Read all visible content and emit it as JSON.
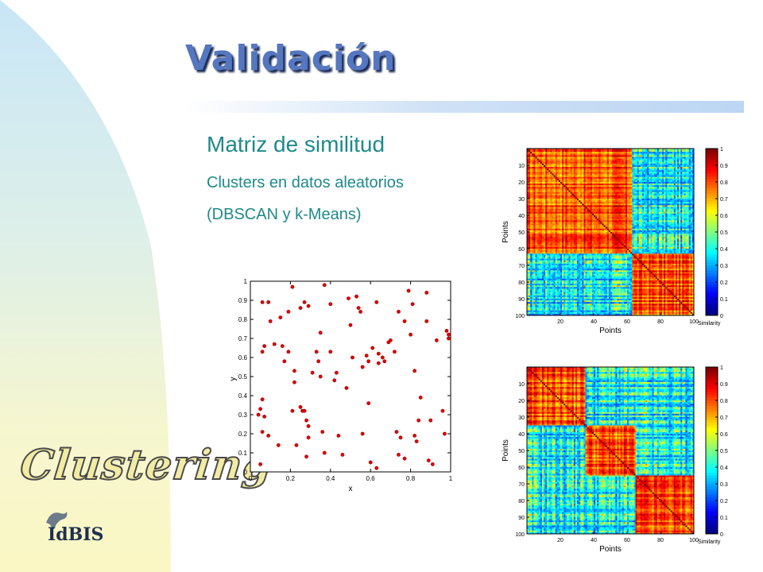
{
  "slide": {
    "title": "Validación",
    "heading": "Matriz de similitud",
    "subheading_1": "Clusters en datos aleatorios",
    "subheading_2": "(DBSCAN y k-Means)",
    "logo_text": "Clustering",
    "brand_text": "IdBIS",
    "colors": {
      "title": "#5576c0",
      "heading": "#1f8a8a",
      "points": "#e00000"
    }
  },
  "chart_data": [
    {
      "type": "scatter",
      "title": "",
      "xlabel": "x",
      "ylabel": "y",
      "xlim": [
        0,
        1
      ],
      "ylim": [
        0,
        1
      ],
      "xticks": [
        "0",
        "0.2",
        "0.4",
        "0.6",
        "0.8",
        "1"
      ],
      "yticks": [
        "0",
        "0.1",
        "0.2",
        "0.3",
        "0.4",
        "0.5",
        "0.6",
        "0.7",
        "0.8",
        "0.9",
        "1"
      ],
      "points": [
        [
          0.04,
          0.3
        ],
        [
          0.05,
          0.33
        ],
        [
          0.06,
          0.89
        ],
        [
          0.09,
          0.89
        ],
        [
          0.06,
          0.63
        ],
        [
          0.07,
          0.66
        ],
        [
          0.06,
          0.38
        ],
        [
          0.07,
          0.29
        ],
        [
          0.06,
          0.21
        ],
        [
          0.05,
          0.04
        ],
        [
          0.09,
          0.19
        ],
        [
          0.1,
          0.79
        ],
        [
          0.12,
          0.67
        ],
        [
          0.15,
          0.81
        ],
        [
          0.16,
          0.66
        ],
        [
          0.14,
          0.14
        ],
        [
          0.17,
          0.58
        ],
        [
          0.19,
          0.84
        ],
        [
          0.19,
          0.63
        ],
        [
          0.21,
          0.97
        ],
        [
          0.21,
          0.32
        ],
        [
          0.22,
          0.53
        ],
        [
          0.23,
          0.14
        ],
        [
          0.22,
          0.47
        ],
        [
          0.25,
          0.86
        ],
        [
          0.25,
          0.34
        ],
        [
          0.26,
          0.32
        ],
        [
          0.27,
          0.32
        ],
        [
          0.27,
          0.89
        ],
        [
          0.29,
          0.87
        ],
        [
          0.28,
          0.27
        ],
        [
          0.29,
          0.24
        ],
        [
          0.29,
          0.18
        ],
        [
          0.28,
          0.08
        ],
        [
          0.31,
          0.52
        ],
        [
          0.33,
          0.63
        ],
        [
          0.34,
          0.58
        ],
        [
          0.35,
          0.5
        ],
        [
          0.35,
          0.73
        ],
        [
          0.36,
          0.21
        ],
        [
          0.37,
          0.98
        ],
        [
          0.37,
          0.1
        ],
        [
          0.4,
          0.88
        ],
        [
          0.4,
          0.63
        ],
        [
          0.42,
          0.48
        ],
        [
          0.43,
          0.52
        ],
        [
          0.44,
          0.19
        ],
        [
          0.46,
          0.09
        ],
        [
          0.48,
          0.44
        ],
        [
          0.49,
          0.91
        ],
        [
          0.5,
          0.77
        ],
        [
          0.51,
          0.6
        ],
        [
          0.53,
          0.92
        ],
        [
          0.54,
          0.86
        ],
        [
          0.55,
          0.84
        ],
        [
          0.56,
          0.55
        ],
        [
          0.56,
          0.2
        ],
        [
          0.58,
          0.61
        ],
        [
          0.59,
          0.58
        ],
        [
          0.59,
          0.36
        ],
        [
          0.6,
          0.05
        ],
        [
          0.61,
          0.65
        ],
        [
          0.63,
          0.89
        ],
        [
          0.64,
          0.57
        ],
        [
          0.64,
          0.62
        ],
        [
          0.66,
          0.6
        ],
        [
          0.67,
          0.58
        ],
        [
          0.63,
          0.02
        ],
        [
          0.69,
          0.68
        ],
        [
          0.7,
          0.69
        ],
        [
          0.72,
          0.63
        ],
        [
          0.74,
          0.84
        ],
        [
          0.73,
          0.21
        ],
        [
          0.74,
          0.09
        ],
        [
          0.75,
          0.18
        ],
        [
          0.77,
          0.79
        ],
        [
          0.77,
          0.07
        ],
        [
          0.79,
          0.95
        ],
        [
          0.8,
          0.72
        ],
        [
          0.81,
          0.88
        ],
        [
          0.82,
          0.53
        ],
        [
          0.82,
          0.19
        ],
        [
          0.83,
          0.16
        ],
        [
          0.84,
          0.27
        ],
        [
          0.85,
          0.39
        ],
        [
          0.88,
          0.94
        ],
        [
          0.88,
          0.79
        ],
        [
          0.89,
          0.06
        ],
        [
          0.9,
          0.27
        ],
        [
          0.91,
          0.04
        ],
        [
          0.93,
          0.69
        ],
        [
          0.96,
          0.32
        ],
        [
          0.97,
          0.2
        ],
        [
          0.98,
          0.74
        ],
        [
          0.99,
          0.7
        ],
        [
          0.99,
          0.72
        ]
      ]
    },
    {
      "type": "heatmap",
      "title": "",
      "xlabel": "Points",
      "ylabel": "Points",
      "colorbar_label": "Similarity",
      "xticks": [
        "20",
        "40",
        "60",
        "80",
        "100"
      ],
      "yticks": [
        "10",
        "20",
        "30",
        "40",
        "50",
        "60",
        "70",
        "80",
        "90",
        "100"
      ],
      "colorbar_ticks": [
        "0",
        "0.1",
        "0.2",
        "0.3",
        "0.4",
        "0.5",
        "0.6",
        "0.7",
        "0.8",
        "0.9",
        "1"
      ],
      "n": 100,
      "clusters": [
        [
          1,
          63
        ],
        [
          64,
          100
        ]
      ]
    },
    {
      "type": "heatmap",
      "title": "",
      "xlabel": "Points",
      "ylabel": "Points",
      "colorbar_label": "Similarity",
      "xticks": [
        "20",
        "40",
        "60",
        "80",
        "100"
      ],
      "yticks": [
        "10",
        "20",
        "30",
        "40",
        "50",
        "60",
        "70",
        "80",
        "90",
        "100"
      ],
      "colorbar_ticks": [
        "0",
        "0.1",
        "0.2",
        "0.3",
        "0.4",
        "0.5",
        "0.6",
        "0.7",
        "0.8",
        "0.9",
        "1"
      ],
      "n": 100,
      "clusters": [
        [
          1,
          35
        ],
        [
          36,
          65
        ],
        [
          66,
          100
        ]
      ]
    }
  ]
}
